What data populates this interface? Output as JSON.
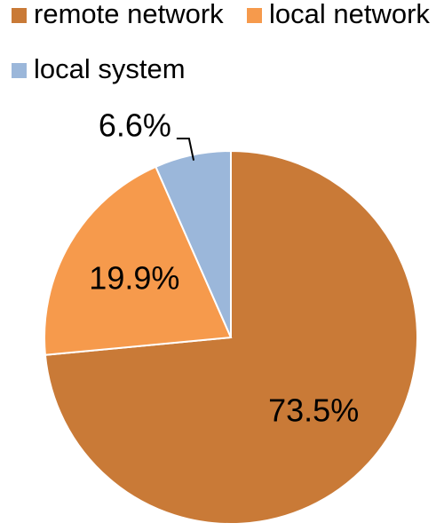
{
  "chart_data": {
    "type": "pie",
    "categories": [
      "remote network",
      "local network",
      "local system"
    ],
    "values": [
      73.5,
      19.9,
      6.6
    ],
    "value_labels": [
      "73.5%",
      "19.9%",
      "6.6%"
    ],
    "colors": [
      "#c97a37",
      "#f69a4c",
      "#9bb7da"
    ],
    "legend": "top"
  }
}
